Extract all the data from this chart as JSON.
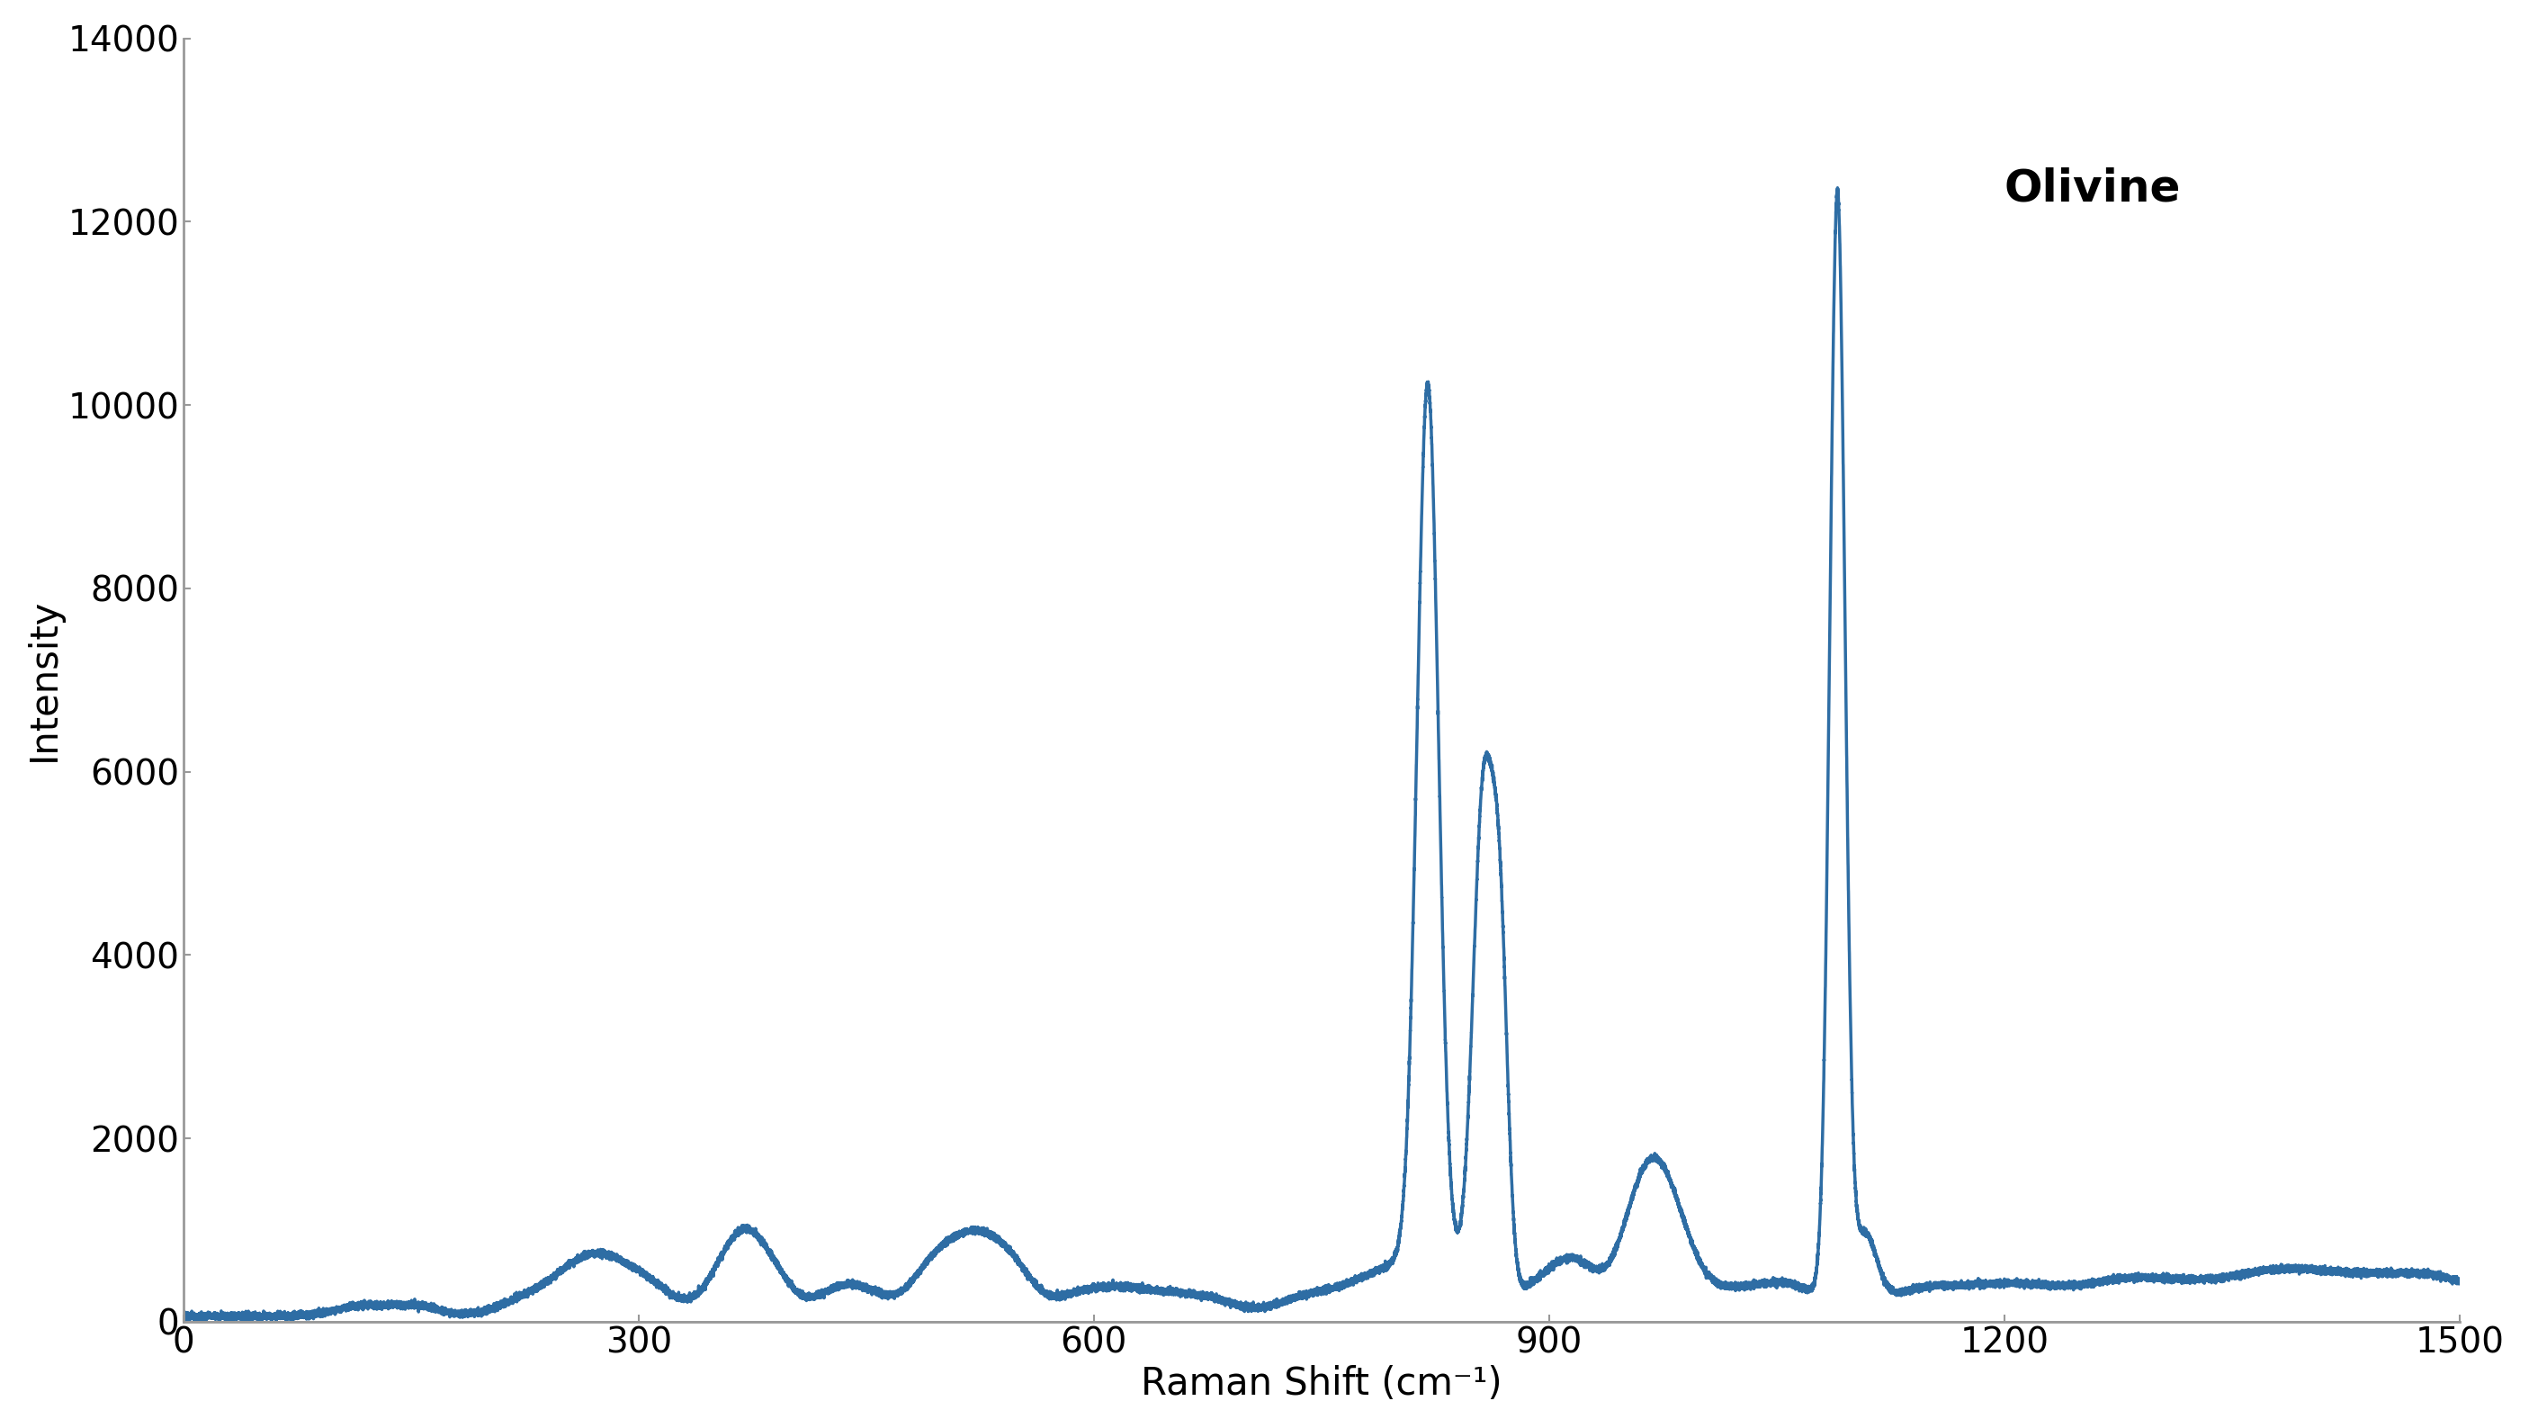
{
  "title": "Olivine",
  "xlabel": "Raman Shift (cm⁻¹)",
  "ylabel": "Intensity",
  "xlim": [
    0,
    1500
  ],
  "ylim": [
    0,
    14000
  ],
  "xticks": [
    0,
    300,
    600,
    900,
    1200,
    1500
  ],
  "yticks": [
    0,
    2000,
    4000,
    6000,
    8000,
    10000,
    12000,
    14000
  ],
  "line_color": "#2E6DA4",
  "line_width": 2.5,
  "background_color": "#ffffff",
  "title_fontsize": 36,
  "axis_label_fontsize": 30,
  "tick_fontsize": 28,
  "spine_color": "#999999"
}
